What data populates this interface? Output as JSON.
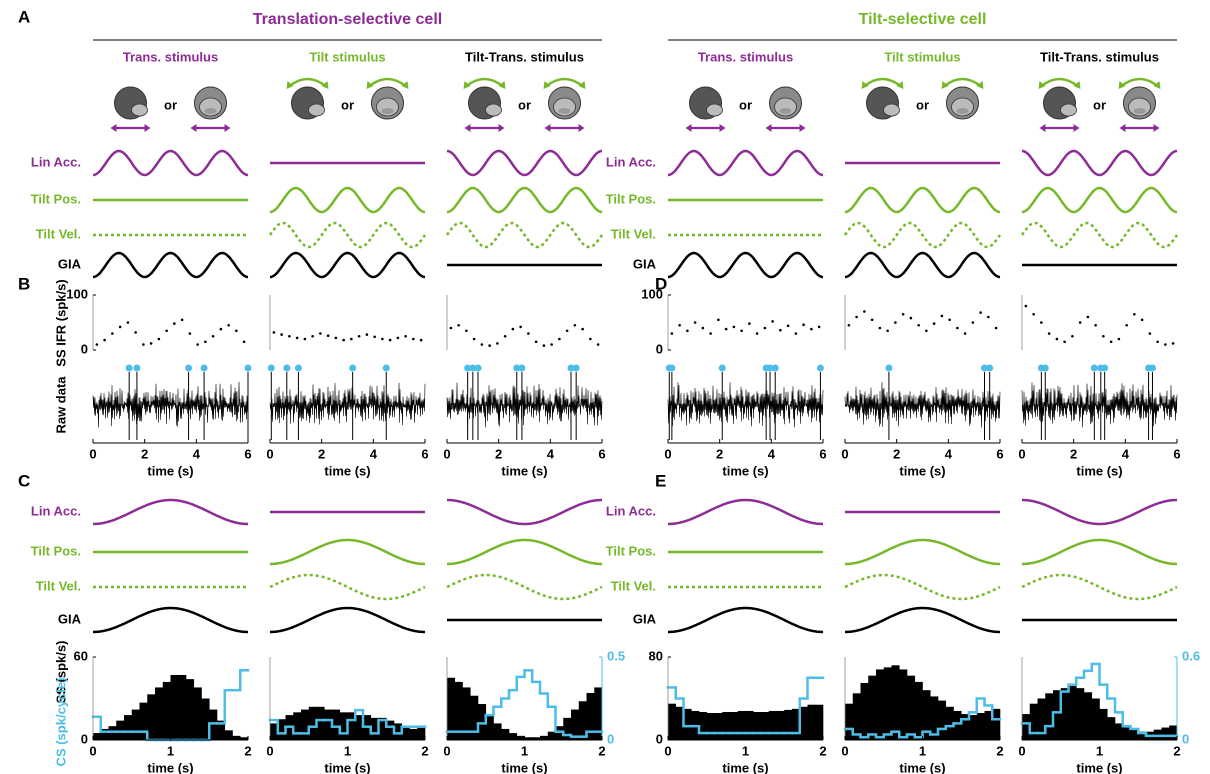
{
  "figure": {
    "panel_labels": [
      "A",
      "B",
      "C",
      "D",
      "E"
    ],
    "or_label": "or",
    "raw_label": "Raw data",
    "trace_labels": [
      {
        "text": "Lin Acc.",
        "color": "#8e2c96"
      },
      {
        "text": "Tilt Pos.",
        "color": "#76b82a"
      },
      {
        "text": "Tilt Vel.",
        "color": "#76b82a"
      },
      {
        "text": "GIA",
        "color": "#000000"
      }
    ],
    "cells": [
      {
        "title": "Translation-selective cell",
        "color": "#8e2c96"
      },
      {
        "title": "Tilt-selective cell",
        "color": "#76b82a"
      }
    ],
    "stimuli": [
      {
        "label": "Trans. stimulus",
        "color": "#8e2c96"
      },
      {
        "label": "Tilt stimulus",
        "color": "#76b82a"
      },
      {
        "label": "Tilt-Trans. stimulus",
        "color": "#000000"
      }
    ]
  },
  "chart_data": [
    {
      "type": "scatter",
      "color": "#000000",
      "events_color": "#4dbde8",
      "xlim": [
        0,
        6
      ],
      "xticks": [
        0,
        2,
        4,
        6
      ],
      "xlabel": "time (s)",
      "ylim": [
        0,
        100
      ],
      "yticks": [
        0,
        100
      ],
      "ylabel": "SS IFR (spk/s)",
      "x": [
        0.15,
        0.45,
        0.75,
        1.05,
        1.35,
        1.65,
        1.95,
        2.25,
        2.55,
        2.85,
        3.15,
        3.45,
        3.75,
        4.05,
        4.35,
        4.65,
        4.95,
        5.25,
        5.55,
        5.85
      ],
      "values": [
        10,
        18,
        30,
        42,
        50,
        32,
        10,
        12,
        20,
        35,
        48,
        55,
        30,
        10,
        15,
        25,
        38,
        45,
        35,
        15
      ],
      "events": [
        1.4,
        1.7,
        3.7,
        4.3,
        6.0
      ]
    },
    {
      "type": "scatter",
      "color": "#000000",
      "events_color": "#4dbde8",
      "xlim": [
        0,
        6
      ],
      "xticks": [
        0,
        2,
        4,
        6
      ],
      "xlabel": "time (s)",
      "ylim": [
        0,
        100
      ],
      "x": [
        0.15,
        0.45,
        0.75,
        1.05,
        1.35,
        1.65,
        1.95,
        2.25,
        2.55,
        2.85,
        3.15,
        3.45,
        3.75,
        4.05,
        4.35,
        4.65,
        4.95,
        5.25,
        5.55,
        5.85
      ],
      "values": [
        32,
        28,
        25,
        22,
        20,
        25,
        30,
        26,
        22,
        18,
        20,
        25,
        28,
        24,
        20,
        18,
        22,
        25,
        20,
        18
      ],
      "events": [
        0.05,
        0.65,
        1.1,
        3.2,
        4.5
      ]
    },
    {
      "type": "scatter",
      "color": "#000000",
      "events_color": "#4dbde8",
      "xlim": [
        0,
        6
      ],
      "xticks": [
        0,
        2,
        4,
        6
      ],
      "xlabel": "time (s)",
      "ylim": [
        0,
        100
      ],
      "x": [
        0.15,
        0.45,
        0.75,
        1.05,
        1.35,
        1.65,
        1.95,
        2.25,
        2.55,
        2.85,
        3.15,
        3.45,
        3.75,
        4.05,
        4.35,
        4.65,
        4.95,
        5.25,
        5.55,
        5.85
      ],
      "values": [
        40,
        45,
        35,
        20,
        10,
        8,
        12,
        25,
        38,
        42,
        30,
        15,
        8,
        10,
        20,
        35,
        45,
        38,
        20,
        10
      ],
      "events": [
        0.8,
        1.0,
        1.2,
        2.7,
        2.9,
        4.8,
        5.0
      ]
    },
    {
      "type": "scatter",
      "color": "#000000",
      "events_color": "#4dbde8",
      "xlim": [
        0,
        6
      ],
      "xticks": [
        0,
        2,
        4,
        6
      ],
      "xlabel": "time (s)",
      "ylim": [
        0,
        100
      ],
      "yticks": [
        0,
        100
      ],
      "x": [
        0.15,
        0.45,
        0.75,
        1.05,
        1.35,
        1.65,
        1.95,
        2.25,
        2.55,
        2.85,
        3.15,
        3.45,
        3.75,
        4.05,
        4.35,
        4.65,
        4.95,
        5.25,
        5.55,
        5.85
      ],
      "values": [
        30,
        45,
        35,
        50,
        40,
        30,
        55,
        38,
        42,
        35,
        48,
        30,
        40,
        52,
        36,
        44,
        30,
        46,
        38,
        42
      ],
      "events": [
        0.05,
        0.15,
        2.1,
        3.8,
        3.95,
        4.15,
        5.9
      ]
    },
    {
      "type": "scatter",
      "color": "#000000",
      "events_color": "#4dbde8",
      "xlim": [
        0,
        6
      ],
      "xticks": [
        0,
        2,
        4,
        6
      ],
      "xlabel": "time (s)",
      "ylim": [
        0,
        100
      ],
      "x": [
        0.15,
        0.45,
        0.75,
        1.05,
        1.35,
        1.65,
        1.95,
        2.25,
        2.55,
        2.85,
        3.15,
        3.45,
        3.75,
        4.05,
        4.35,
        4.65,
        4.95,
        5.25,
        5.55,
        5.85
      ],
      "values": [
        45,
        60,
        70,
        55,
        40,
        35,
        50,
        65,
        58,
        45,
        35,
        48,
        62,
        55,
        40,
        30,
        50,
        68,
        60,
        40
      ],
      "events": [
        1.7,
        5.4,
        5.6
      ]
    },
    {
      "type": "scatter",
      "color": "#000000",
      "events_color": "#4dbde8",
      "xlim": [
        0,
        6
      ],
      "xticks": [
        0,
        2,
        4,
        6
      ],
      "xlabel": "time (s)",
      "ylim": [
        0,
        100
      ],
      "x": [
        0.15,
        0.45,
        0.75,
        1.05,
        1.35,
        1.65,
        1.95,
        2.25,
        2.55,
        2.85,
        3.15,
        3.45,
        3.75,
        4.05,
        4.35,
        4.65,
        4.95,
        5.25,
        5.55,
        5.85
      ],
      "values": [
        80,
        65,
        50,
        30,
        20,
        15,
        25,
        50,
        60,
        45,
        25,
        15,
        20,
        45,
        65,
        55,
        30,
        15,
        10,
        12
      ],
      "events": [
        0.75,
        0.9,
        2.8,
        3.05,
        3.2,
        4.9,
        5.05
      ]
    },
    {
      "type": "histogram",
      "xlim": [
        0,
        2
      ],
      "xticks": [
        0,
        1,
        2
      ],
      "xlabel": "time (s)",
      "ylim": [
        0,
        60
      ],
      "yticks": [
        0,
        60
      ],
      "y2lim": [
        0,
        0.5
      ],
      "ylabel": "SS (spk/s)",
      "y2label": "CS (spk/cycle)",
      "bins": [
        0,
        0.1,
        0.2,
        0.3,
        0.4,
        0.5,
        0.6,
        0.7,
        0.8,
        0.9,
        1.0,
        1.1,
        1.2,
        1.3,
        1.4,
        1.5,
        1.6,
        1.7,
        1.8,
        1.9,
        2.0
      ],
      "series": [
        {
          "color": "#000000",
          "values": [
            5,
            8,
            10,
            14,
            18,
            22,
            27,
            33,
            38,
            42,
            47,
            47,
            44,
            38,
            30,
            22,
            14,
            7,
            3,
            2
          ]
        },
        {
          "color": "#4dbde8",
          "axis": "y2",
          "values": [
            0.14,
            0.05,
            0.05,
            0.05,
            0.05,
            0.05,
            0.05,
            0,
            0,
            0,
            0,
            0,
            0,
            0,
            0,
            0.1,
            0.1,
            0.3,
            0.3,
            0.42
          ]
        }
      ]
    },
    {
      "type": "histogram",
      "xlim": [
        0,
        2
      ],
      "xticks": [
        0,
        1,
        2
      ],
      "xlabel": "time (s)",
      "ylim": [
        0,
        60
      ],
      "y2lim": [
        0,
        0.5
      ],
      "bins": [
        0,
        0.1,
        0.2,
        0.3,
        0.4,
        0.5,
        0.6,
        0.7,
        0.8,
        0.9,
        1.0,
        1.1,
        1.2,
        1.3,
        1.4,
        1.5,
        1.6,
        1.7,
        1.8,
        1.9,
        2.0
      ],
      "series": [
        {
          "color": "#000000",
          "values": [
            12,
            15,
            18,
            20,
            22,
            24,
            24,
            22,
            22,
            20,
            20,
            18,
            18,
            16,
            16,
            14,
            12,
            10,
            8,
            10
          ]
        },
        {
          "color": "#4dbde8",
          "axis": "y2",
          "values": [
            0.12,
            0.04,
            0.08,
            0.04,
            0.04,
            0.08,
            0.12,
            0.12,
            0.08,
            0.04,
            0.12,
            0.18,
            0.08,
            0.04,
            0.12,
            0.08,
            0.04,
            0.08,
            0.08,
            0.08
          ]
        }
      ]
    },
    {
      "type": "histogram",
      "xlim": [
        0,
        2
      ],
      "xticks": [
        0,
        1,
        2
      ],
      "xlabel": "time (s)",
      "ylim": [
        0,
        60
      ],
      "y2lim": [
        0,
        0.5
      ],
      "y2ticks": [
        0,
        0.5
      ],
      "bins": [
        0,
        0.1,
        0.2,
        0.3,
        0.4,
        0.5,
        0.6,
        0.7,
        0.8,
        0.9,
        1.0,
        1.1,
        1.2,
        1.3,
        1.4,
        1.5,
        1.6,
        1.7,
        1.8,
        1.9,
        2.0
      ],
      "series": [
        {
          "color": "#000000",
          "values": [
            45,
            42,
            38,
            32,
            26,
            18,
            12,
            8,
            5,
            3,
            2,
            2,
            3,
            6,
            10,
            16,
            22,
            28,
            34,
            38
          ]
        },
        {
          "color": "#4dbde8",
          "axis": "y2",
          "values": [
            0.05,
            0.05,
            0.05,
            0.05,
            0.1,
            0.15,
            0.2,
            0.25,
            0.3,
            0.38,
            0.42,
            0.35,
            0.28,
            0.2,
            0.05,
            0.03,
            0.02,
            0.02,
            0.05,
            0.05
          ]
        }
      ]
    },
    {
      "type": "histogram",
      "xlim": [
        0,
        2
      ],
      "xticks": [
        0,
        1,
        2
      ],
      "xlabel": "time (s)",
      "ylim": [
        0,
        80
      ],
      "yticks": [
        0,
        80
      ],
      "y2lim": [
        0,
        0.6
      ],
      "bins": [
        0,
        0.1,
        0.2,
        0.3,
        0.4,
        0.5,
        0.6,
        0.7,
        0.8,
        0.9,
        1.0,
        1.1,
        1.2,
        1.3,
        1.4,
        1.5,
        1.6,
        1.7,
        1.8,
        1.9,
        2.0
      ],
      "series": [
        {
          "color": "#000000",
          "values": [
            35,
            32,
            30,
            28,
            27,
            26,
            26,
            27,
            27,
            28,
            28,
            27,
            27,
            28,
            28,
            29,
            30,
            32,
            34,
            34
          ]
        },
        {
          "color": "#4dbde8",
          "axis": "y2",
          "values": [
            0.38,
            0.3,
            0.1,
            0.1,
            0.05,
            0.05,
            0.05,
            0.05,
            0.05,
            0.05,
            0.05,
            0.05,
            0.05,
            0.05,
            0.05,
            0.05,
            0.05,
            0.3,
            0.45,
            0.45
          ]
        }
      ]
    },
    {
      "type": "histogram",
      "xlim": [
        0,
        2
      ],
      "xticks": [
        0,
        1,
        2
      ],
      "xlabel": "time (s)",
      "ylim": [
        0,
        80
      ],
      "y2lim": [
        0,
        0.6
      ],
      "bins": [
        0,
        0.1,
        0.2,
        0.3,
        0.4,
        0.5,
        0.6,
        0.7,
        0.8,
        0.9,
        1.0,
        1.1,
        1.2,
        1.3,
        1.4,
        1.5,
        1.6,
        1.7,
        1.8,
        1.9,
        2.0
      ],
      "series": [
        {
          "color": "#000000",
          "values": [
            35,
            45,
            55,
            62,
            68,
            70,
            72,
            68,
            62,
            56,
            48,
            42,
            38,
            32,
            28,
            25,
            24,
            26,
            28,
            30
          ]
        },
        {
          "color": "#4dbde8",
          "axis": "y2",
          "values": [
            0.08,
            0.04,
            0.02,
            0.04,
            0.02,
            0.04,
            0.06,
            0.02,
            0.04,
            0.02,
            0.06,
            0.04,
            0.08,
            0.1,
            0.12,
            0.15,
            0.2,
            0.3,
            0.25,
            0.15
          ]
        }
      ]
    },
    {
      "type": "histogram",
      "xlim": [
        0,
        2
      ],
      "xticks": [
        0,
        1,
        2
      ],
      "xlabel": "time (s)",
      "ylim": [
        0,
        80
      ],
      "y2lim": [
        0,
        0.6
      ],
      "y2ticks": [
        0,
        0.6
      ],
      "bins": [
        0,
        0.1,
        0.2,
        0.3,
        0.4,
        0.5,
        0.6,
        0.7,
        0.8,
        0.9,
        1.0,
        1.1,
        1.2,
        1.3,
        1.4,
        1.5,
        1.6,
        1.7,
        1.8,
        1.9,
        2.0
      ],
      "series": [
        {
          "color": "#000000",
          "values": [
            25,
            35,
            40,
            45,
            48,
            50,
            52,
            50,
            46,
            40,
            30,
            22,
            16,
            12,
            10,
            8,
            8,
            10,
            12,
            14
          ]
        },
        {
          "color": "#4dbde8",
          "axis": "y2",
          "values": [
            0.12,
            0.05,
            0.05,
            0.1,
            0.2,
            0.35,
            0.4,
            0.45,
            0.5,
            0.55,
            0.4,
            0.3,
            0.2,
            0.1,
            0.08,
            0.05,
            0.03,
            0.03,
            0.03,
            0.03
          ]
        }
      ]
    }
  ]
}
